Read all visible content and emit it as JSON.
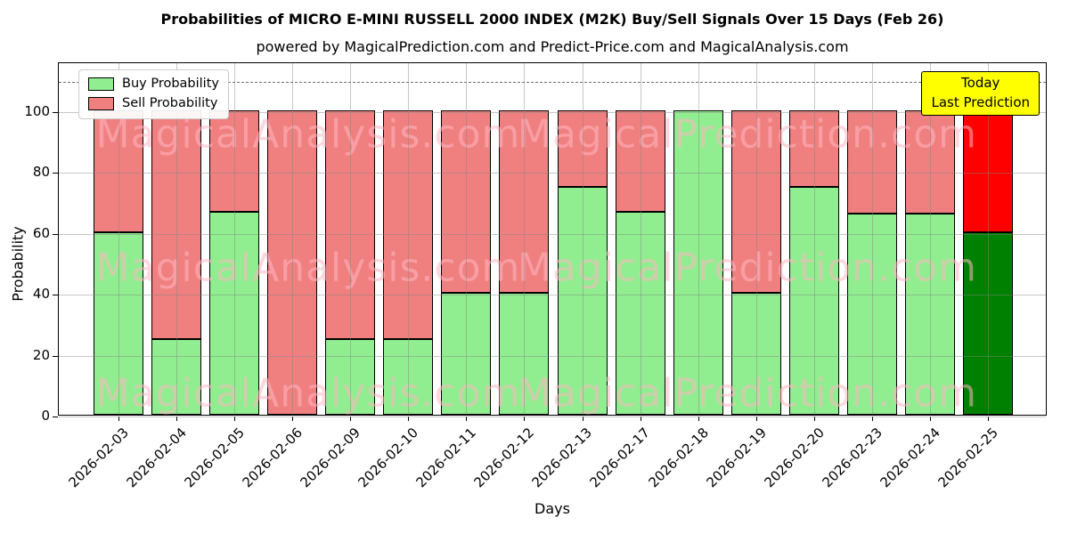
{
  "chart_data": {
    "type": "bar",
    "stacked": true,
    "title": "Probabilities of MICRO E-MINI RUSSELL 2000 INDEX (M2K) Buy/Sell Signals Over 15 Days (Feb 26)",
    "subtitle": "powered by MagicalPrediction.com and Predict-Price.com and MagicalAnalysis.com",
    "xlabel": "Days",
    "ylabel": "Probability",
    "categories": [
      "2026-02-03",
      "2026-02-04",
      "2026-02-05",
      "2026-02-06",
      "2026-02-09",
      "2026-02-10",
      "2026-02-11",
      "2026-02-12",
      "2026-02-13",
      "2026-02-17",
      "2026-02-18",
      "2026-02-19",
      "2026-02-20",
      "2026-02-23",
      "2026-02-24",
      "2026-02-25"
    ],
    "series": [
      {
        "name": "Buy Probability",
        "color": "#90ee90",
        "last_bar_color": "#008000",
        "values": [
          60,
          25,
          66.7,
          0,
          25,
          25,
          40,
          40,
          75,
          66.7,
          100,
          40,
          75,
          66,
          66,
          60
        ]
      },
      {
        "name": "Sell Probability",
        "color": "#f08080",
        "last_bar_color": "#ff0000",
        "values": [
          40,
          75,
          33.3,
          100,
          75,
          75,
          60,
          60,
          25,
          33.3,
          0,
          60,
          25,
          34,
          34,
          40
        ]
      }
    ],
    "ylim": [
      0,
      116
    ],
    "yticks": [
      0,
      20,
      40,
      60,
      80,
      100
    ],
    "grid": true,
    "legend_position": "upper left",
    "dashed_line_y": 110
  },
  "annotation": {
    "lines": [
      "Today",
      "Last Prediction"
    ],
    "bg_color": "#ffff00"
  },
  "watermarks": {
    "left": "MagicalAnalysis.com",
    "right": "MagicalPrediction.com"
  }
}
